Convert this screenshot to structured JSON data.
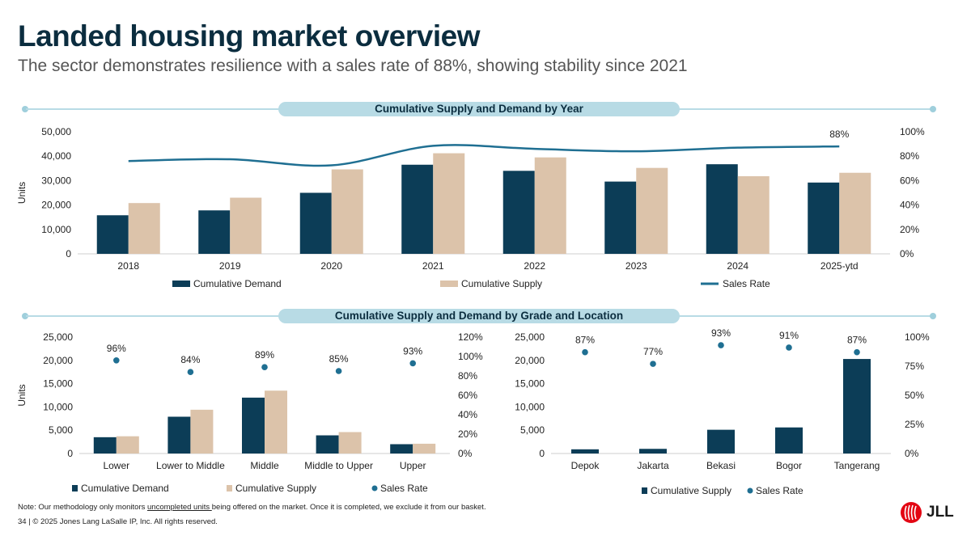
{
  "header": {
    "title": "Landed housing market overview",
    "subtitle": "The sector demonstrates resilience with a sales rate of 88%, showing stability since 2021"
  },
  "banners": {
    "top": "Cumulative Supply and Demand by Year",
    "bottom": "Cumulative Supply and Demand by Grade and Location"
  },
  "colors": {
    "demand": "#0c3d57",
    "supply": "#dcc3aa",
    "rate": "#1f6f92"
  },
  "chart_data": [
    {
      "type": "bar",
      "title": "Cumulative Supply and Demand by Year",
      "ylabel": "Units",
      "ylim": [
        0,
        50000
      ],
      "yticks": [
        "0",
        "10,000",
        "20,000",
        "30,000",
        "40,000",
        "50,000"
      ],
      "y2ticks": [
        "0%",
        "20%",
        "40%",
        "60%",
        "80%",
        "100%"
      ],
      "categories": [
        "2018",
        "2019",
        "2020",
        "2021",
        "2022",
        "2023",
        "2024",
        "2025-ytd"
      ],
      "series": [
        {
          "name": "Cumulative Demand",
          "values": [
            15800,
            17800,
            25000,
            36500,
            34000,
            29600,
            36700,
            29200
          ]
        },
        {
          "name": "Cumulative Supply",
          "values": [
            20800,
            23000,
            34600,
            41200,
            39500,
            35200,
            31800,
            33200
          ]
        }
      ],
      "line_series": {
        "name": "Sales Rate",
        "values": [
          76,
          77.5,
          72.5,
          88.5,
          86,
          84,
          87,
          88
        ],
        "ylim": [
          0,
          100
        ]
      },
      "annotation": "88%",
      "legend": [
        "Cumulative Demand",
        "Cumulative Supply",
        "Sales Rate"
      ]
    },
    {
      "type": "bar",
      "title": "By Grade",
      "ylabel": "Units",
      "ylim": [
        0,
        25000
      ],
      "yticks": [
        "0",
        "5,000",
        "10,000",
        "15,000",
        "20,000",
        "25,000"
      ],
      "y2ticks": [
        "0%",
        "20%",
        "40%",
        "60%",
        "80%",
        "100%",
        "120%"
      ],
      "categories": [
        "Lower",
        "Lower to Middle",
        "Middle",
        "Middle to Upper",
        "Upper"
      ],
      "series": [
        {
          "name": "Cumulative Demand",
          "values": [
            3500,
            7900,
            12000,
            3900,
            2000
          ]
        },
        {
          "name": "Cumulative Supply",
          "values": [
            3700,
            9400,
            13500,
            4600,
            2100
          ]
        }
      ],
      "scatter_series": {
        "name": "Sales Rate",
        "values": [
          96,
          84,
          89,
          85,
          93
        ],
        "labels": [
          "96%",
          "84%",
          "89%",
          "85%",
          "93%"
        ],
        "ylim": [
          0,
          120
        ]
      },
      "legend": [
        "Cumulative Demand",
        "Cumulative Supply",
        "Sales Rate"
      ]
    },
    {
      "type": "bar",
      "title": "By Location",
      "ylim": [
        0,
        25000
      ],
      "yticks": [
        "0",
        "5,000",
        "10,000",
        "15,000",
        "20,000",
        "25,000"
      ],
      "y2ticks": [
        "0%",
        "25%",
        "50%",
        "75%",
        "100%"
      ],
      "categories": [
        "Depok",
        "Jakarta",
        "Bekasi",
        "Bogor",
        "Tangerang"
      ],
      "series": [
        {
          "name": "Cumulative Supply",
          "values": [
            900,
            1000,
            5100,
            5600,
            20300
          ]
        }
      ],
      "scatter_series": {
        "name": "Sales Rate",
        "values": [
          87,
          77,
          93,
          91,
          87
        ],
        "labels": [
          "87%",
          "77%",
          "93%",
          "91%",
          "87%"
        ],
        "ylim": [
          0,
          100
        ]
      },
      "legend": [
        "Cumulative Supply",
        "Sales Rate"
      ]
    }
  ],
  "footer": {
    "note_prefix": "Note: Our methodology only monitors ",
    "note_underlined": "uncompleted units ",
    "note_suffix": "being offered on the market. Once it is completed, we exclude it from our basket.",
    "copyright": "34  |  © 2025 Jones Lang LaSalle IP, Inc. All rights reserved.",
    "logo": "JLL"
  }
}
